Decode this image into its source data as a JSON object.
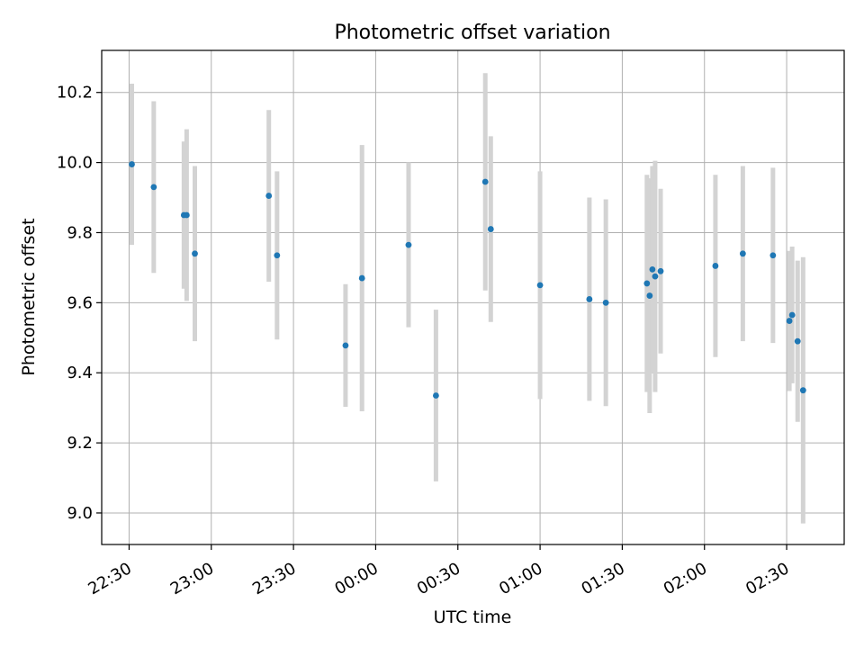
{
  "chart_data": {
    "type": "scatter",
    "title": "Photometric offset variation",
    "xlabel": "UTC time",
    "ylabel": "Photometric offset",
    "grid": true,
    "x_ticks": [
      "22:30",
      "23:00",
      "23:30",
      "00:00",
      "00:30",
      "01:00",
      "01:30",
      "02:00",
      "02:30"
    ],
    "y_ticks": [
      "9.0",
      "9.2",
      "9.4",
      "9.6",
      "9.8",
      "10.0",
      "10.2"
    ],
    "xlim": [
      "22:20",
      "02:51"
    ],
    "ylim": [
      8.91,
      10.32
    ],
    "point_color": "#1f77b4",
    "errorbar_color": "#d3d3d3",
    "points": [
      {
        "x": "22:31",
        "y": 9.995,
        "err": 0.23
      },
      {
        "x": "22:39",
        "y": 9.93,
        "err": 0.245
      },
      {
        "x": "22:50",
        "y": 9.85,
        "err": 0.21
      },
      {
        "x": "22:51",
        "y": 9.85,
        "err": 0.245
      },
      {
        "x": "22:54",
        "y": 9.74,
        "err": 0.25
      },
      {
        "x": "23:21",
        "y": 9.905,
        "err": 0.245
      },
      {
        "x": "23:24",
        "y": 9.735,
        "err": 0.24
      },
      {
        "x": "23:49",
        "y": 9.478,
        "err": 0.175
      },
      {
        "x": "23:55",
        "y": 9.67,
        "err": 0.38
      },
      {
        "x": "00:12",
        "y": 9.765,
        "err": 0.235
      },
      {
        "x": "00:22",
        "y": 9.335,
        "err": 0.245
      },
      {
        "x": "00:40",
        "y": 9.945,
        "err": 0.31
      },
      {
        "x": "00:42",
        "y": 9.81,
        "err": 0.265
      },
      {
        "x": "01:00",
        "y": 9.65,
        "err": 0.325
      },
      {
        "x": "01:18",
        "y": 9.61,
        "err": 0.29
      },
      {
        "x": "01:24",
        "y": 9.6,
        "err": 0.295
      },
      {
        "x": "01:39",
        "y": 9.655,
        "err": 0.31
      },
      {
        "x": "01:40",
        "y": 9.62,
        "err": 0.335
      },
      {
        "x": "01:41",
        "y": 9.695,
        "err": 0.295
      },
      {
        "x": "01:42",
        "y": 9.675,
        "err": 0.33
      },
      {
        "x": "01:44",
        "y": 9.69,
        "err": 0.235
      },
      {
        "x": "02:04",
        "y": 9.705,
        "err": 0.26
      },
      {
        "x": "02:14",
        "y": 9.74,
        "err": 0.25
      },
      {
        "x": "02:25",
        "y": 9.735,
        "err": 0.25
      },
      {
        "x": "02:31",
        "y": 9.548,
        "err": 0.2
      },
      {
        "x": "02:32",
        "y": 9.565,
        "err": 0.195
      },
      {
        "x": "02:34",
        "y": 9.49,
        "err": 0.23
      },
      {
        "x": "02:36",
        "y": 9.35,
        "err": 0.38
      }
    ]
  }
}
